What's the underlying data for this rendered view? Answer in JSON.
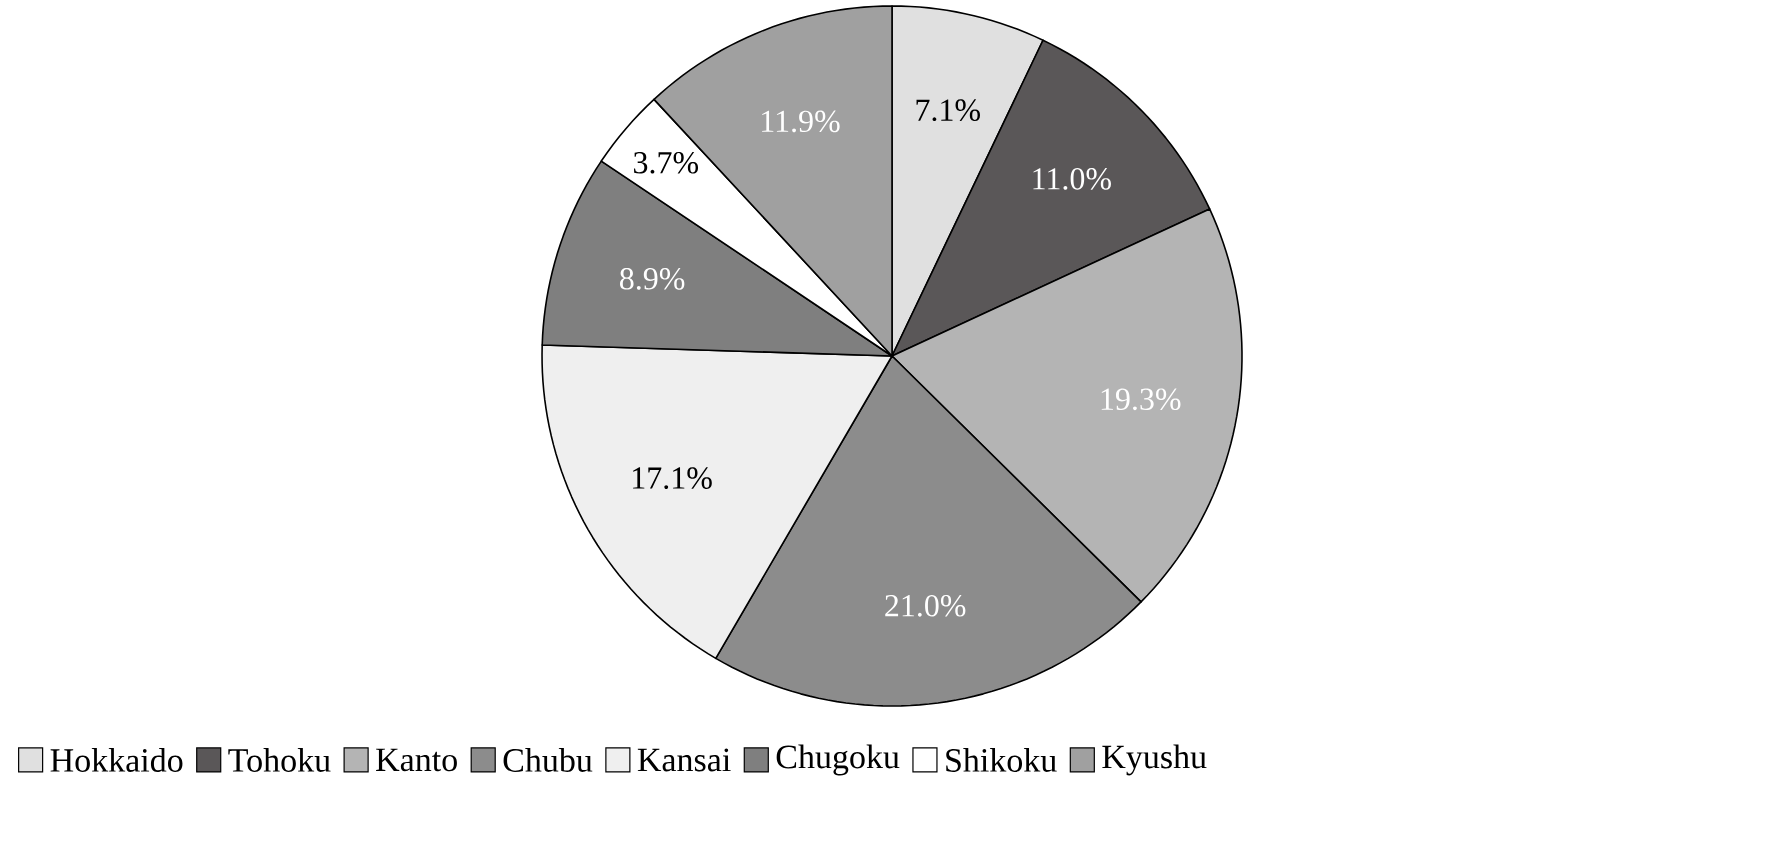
{
  "chart_data": {
    "type": "pie",
    "categories": [
      "Hokkaido",
      "Tohoku",
      "Kanto",
      "Chubu",
      "Kansai",
      "Chugoku",
      "Shikoku",
      "Kyushu"
    ],
    "values": [
      7.1,
      11.0,
      19.3,
      21.0,
      17.1,
      8.9,
      3.7,
      11.9
    ],
    "value_labels": [
      "7.1%",
      "11.0%",
      "19.3%",
      "21.0%",
      "17.1%",
      "8.9%",
      "3.7%",
      "11.9%"
    ],
    "colors": [
      "#e0e0e0",
      "#5a5758",
      "#b4b4b4",
      "#8c8c8c",
      "#efefef",
      "#7f7f7f",
      "#ffffff",
      "#a0a0a0"
    ],
    "legend": "bottom"
  }
}
